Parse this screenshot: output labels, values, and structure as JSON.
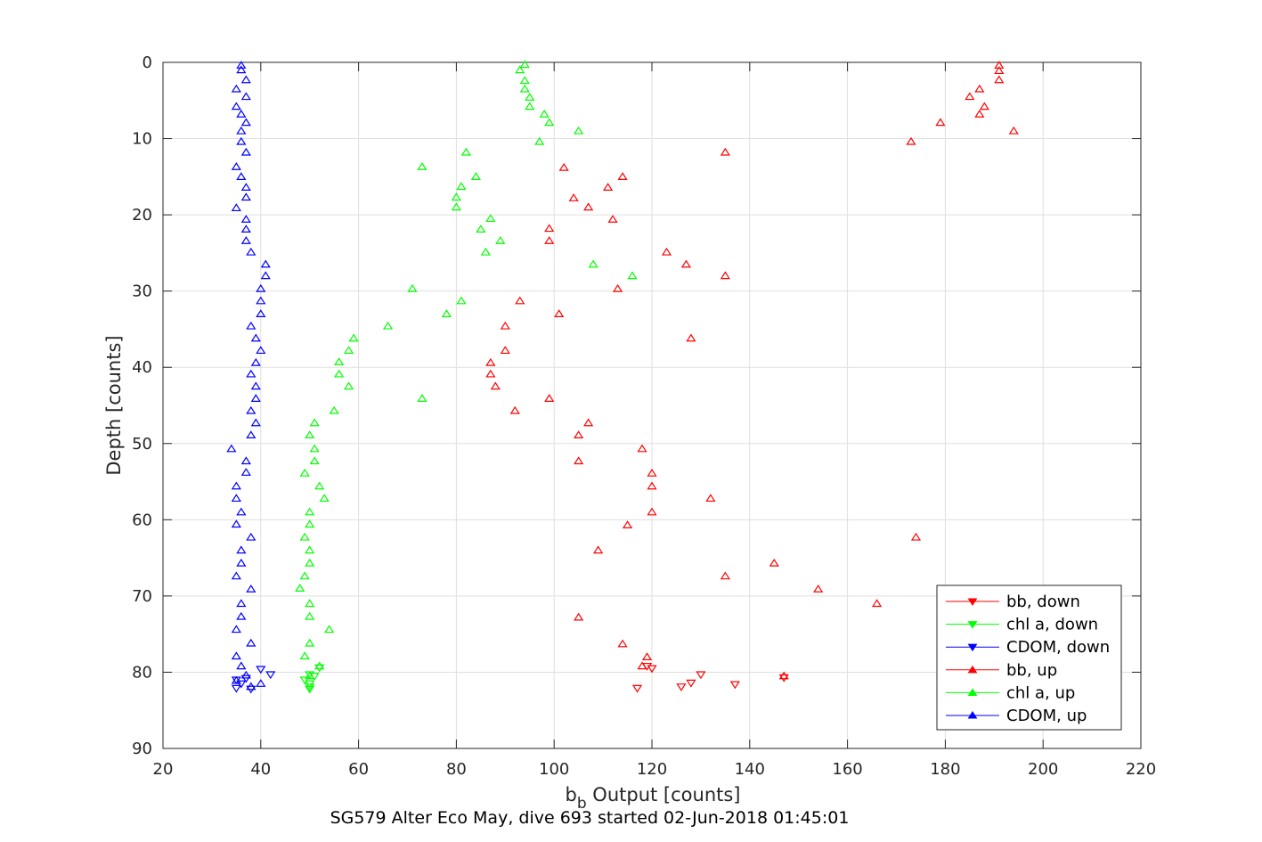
{
  "chart_data": {
    "type": "scatter",
    "title": "",
    "xlabel": "b_b Output [counts]",
    "xlabel_main": "b",
    "xlabel_sub": "b",
    "xlabel_rest": " Output [counts]",
    "ylabel": "Depth [counts]",
    "caption": "SG579 Alter Eco May, dive 693 started 02-Jun-2018 01:45:01",
    "xlim": [
      20,
      220
    ],
    "ylim": [
      0,
      90
    ],
    "y_reversed": true,
    "xticks": [
      20,
      40,
      60,
      80,
      100,
      120,
      140,
      160,
      180,
      200,
      220
    ],
    "yticks": [
      0,
      10,
      20,
      30,
      40,
      50,
      60,
      70,
      80,
      90
    ],
    "grid": true,
    "legend_location": "bottom-right",
    "colors": {
      "red": "#ff0000",
      "green": "#00ff00",
      "blue": "#0000ff"
    },
    "series": [
      {
        "name": "bb, down",
        "color": "#ff0000",
        "marker": "triangle-down",
        "points": [
          [
            120,
            79.5
          ],
          [
            130,
            80.3
          ],
          [
            147,
            80.7
          ],
          [
            128,
            81.4
          ],
          [
            126,
            81.9
          ],
          [
            117,
            82.1
          ],
          [
            137,
            81.6
          ],
          [
            119,
            79.2
          ]
        ]
      },
      {
        "name": "chl a, down",
        "color": "#00ff00",
        "marker": "triangle-down",
        "points": [
          [
            52,
            79.4
          ],
          [
            50,
            80.3
          ],
          [
            49,
            81.0
          ],
          [
            50,
            81.5
          ],
          [
            50,
            81.9
          ],
          [
            50,
            82.2
          ],
          [
            51,
            80.5
          ]
        ]
      },
      {
        "name": "CDOM, down",
        "color": "#0000ff",
        "marker": "triangle-down",
        "points": [
          [
            40,
            79.6
          ],
          [
            42,
            80.3
          ],
          [
            35,
            81.0
          ],
          [
            36,
            81.5
          ],
          [
            35,
            82.1
          ],
          [
            38,
            82.2
          ],
          [
            37,
            80.8
          ]
        ]
      },
      {
        "name": "bb, up",
        "color": "#ff0000",
        "marker": "triangle-up",
        "points": [
          [
            191,
            0.4
          ],
          [
            191,
            1.1
          ],
          [
            191,
            2.3
          ],
          [
            187,
            3.5
          ],
          [
            185,
            4.5
          ],
          [
            188,
            5.8
          ],
          [
            187,
            6.8
          ],
          [
            179,
            7.9
          ],
          [
            194,
            9.0
          ],
          [
            173,
            10.4
          ],
          [
            135,
            11.8
          ],
          [
            102,
            13.8
          ],
          [
            114,
            15.0
          ],
          [
            111,
            16.4
          ],
          [
            104,
            17.8
          ],
          [
            107,
            19.0
          ],
          [
            112,
            20.6
          ],
          [
            99,
            21.8
          ],
          [
            99,
            23.4
          ],
          [
            123,
            24.9
          ],
          [
            127,
            26.5
          ],
          [
            135,
            28.0
          ],
          [
            113,
            29.7
          ],
          [
            93,
            31.3
          ],
          [
            101,
            33.0
          ],
          [
            90,
            34.6
          ],
          [
            128,
            36.2
          ],
          [
            90,
            37.8
          ],
          [
            87,
            39.4
          ],
          [
            87,
            40.9
          ],
          [
            88,
            42.5
          ],
          [
            99,
            44.1
          ],
          [
            92,
            45.7
          ],
          [
            107,
            47.3
          ],
          [
            105,
            48.9
          ],
          [
            118,
            50.7
          ],
          [
            105,
            52.3
          ],
          [
            120,
            53.9
          ],
          [
            120,
            55.6
          ],
          [
            132,
            57.2
          ],
          [
            120,
            59.0
          ],
          [
            115,
            60.7
          ],
          [
            174,
            62.3
          ],
          [
            109,
            64.0
          ],
          [
            145,
            65.7
          ],
          [
            135,
            67.4
          ],
          [
            154,
            69.1
          ],
          [
            166,
            71.0
          ],
          [
            105,
            72.8
          ],
          [
            114,
            76.3
          ],
          [
            119,
            78.0
          ],
          [
            118,
            79.2
          ],
          [
            147,
            80.5
          ]
        ]
      },
      {
        "name": "chl a, up",
        "color": "#00ff00",
        "marker": "triangle-up",
        "points": [
          [
            94,
            0.3
          ],
          [
            93,
            1.0
          ],
          [
            94,
            2.4
          ],
          [
            94,
            3.5
          ],
          [
            95,
            4.6
          ],
          [
            95,
            5.8
          ],
          [
            98,
            6.8
          ],
          [
            99,
            7.9
          ],
          [
            105,
            9.0
          ],
          [
            97,
            10.4
          ],
          [
            82,
            11.8
          ],
          [
            73,
            13.7
          ],
          [
            84,
            15.0
          ],
          [
            81,
            16.3
          ],
          [
            80,
            17.7
          ],
          [
            80,
            19.0
          ],
          [
            87,
            20.5
          ],
          [
            85,
            21.9
          ],
          [
            89,
            23.4
          ],
          [
            86,
            24.9
          ],
          [
            108,
            26.5
          ],
          [
            116,
            28.0
          ],
          [
            71,
            29.7
          ],
          [
            81,
            31.3
          ],
          [
            78,
            33.0
          ],
          [
            66,
            34.6
          ],
          [
            59,
            36.2
          ],
          [
            58,
            37.8
          ],
          [
            56,
            39.3
          ],
          [
            56,
            40.9
          ],
          [
            58,
            42.5
          ],
          [
            73,
            44.1
          ],
          [
            55,
            45.7
          ],
          [
            51,
            47.3
          ],
          [
            50,
            48.9
          ],
          [
            51,
            50.7
          ],
          [
            51,
            52.3
          ],
          [
            49,
            53.9
          ],
          [
            52,
            55.6
          ],
          [
            53,
            57.2
          ],
          [
            50,
            59.0
          ],
          [
            50,
            60.6
          ],
          [
            49,
            62.3
          ],
          [
            50,
            64.0
          ],
          [
            50,
            65.7
          ],
          [
            49,
            67.4
          ],
          [
            48,
            69.0
          ],
          [
            50,
            71.0
          ],
          [
            50,
            72.7
          ],
          [
            54,
            74.4
          ],
          [
            50,
            76.2
          ],
          [
            49,
            77.9
          ],
          [
            52,
            79.2
          ],
          [
            50,
            80.5
          ]
        ]
      },
      {
        "name": "CDOM, up",
        "color": "#0000ff",
        "marker": "triangle-up",
        "points": [
          [
            36,
            0.4
          ],
          [
            36,
            1.0
          ],
          [
            37,
            2.3
          ],
          [
            35,
            3.5
          ],
          [
            37,
            4.5
          ],
          [
            35,
            5.8
          ],
          [
            36,
            6.8
          ],
          [
            37,
            7.9
          ],
          [
            36,
            9.0
          ],
          [
            36,
            10.4
          ],
          [
            37,
            11.8
          ],
          [
            35,
            13.7
          ],
          [
            36,
            15.0
          ],
          [
            37,
            16.4
          ],
          [
            37,
            17.7
          ],
          [
            35,
            19.1
          ],
          [
            37,
            20.6
          ],
          [
            37,
            21.9
          ],
          [
            37,
            23.4
          ],
          [
            38,
            24.9
          ],
          [
            41,
            26.5
          ],
          [
            41,
            28.0
          ],
          [
            40,
            29.7
          ],
          [
            40,
            31.3
          ],
          [
            40,
            33.0
          ],
          [
            38,
            34.6
          ],
          [
            39,
            36.2
          ],
          [
            40,
            37.8
          ],
          [
            39,
            39.4
          ],
          [
            38,
            40.9
          ],
          [
            39,
            42.5
          ],
          [
            39,
            44.1
          ],
          [
            38,
            45.7
          ],
          [
            39,
            47.3
          ],
          [
            38,
            48.9
          ],
          [
            34,
            50.7
          ],
          [
            37,
            52.3
          ],
          [
            37,
            53.8
          ],
          [
            35,
            55.6
          ],
          [
            35,
            57.2
          ],
          [
            36,
            59.0
          ],
          [
            35,
            60.6
          ],
          [
            38,
            62.3
          ],
          [
            36,
            64.0
          ],
          [
            36,
            65.7
          ],
          [
            35,
            67.4
          ],
          [
            38,
            69.1
          ],
          [
            36,
            71.0
          ],
          [
            36,
            72.7
          ],
          [
            35,
            74.4
          ],
          [
            38,
            76.2
          ],
          [
            35,
            77.9
          ],
          [
            36,
            79.2
          ],
          [
            37,
            80.4
          ],
          [
            35,
            81.1
          ],
          [
            40,
            81.5
          ],
          [
            38,
            81.9
          ]
        ]
      }
    ]
  }
}
